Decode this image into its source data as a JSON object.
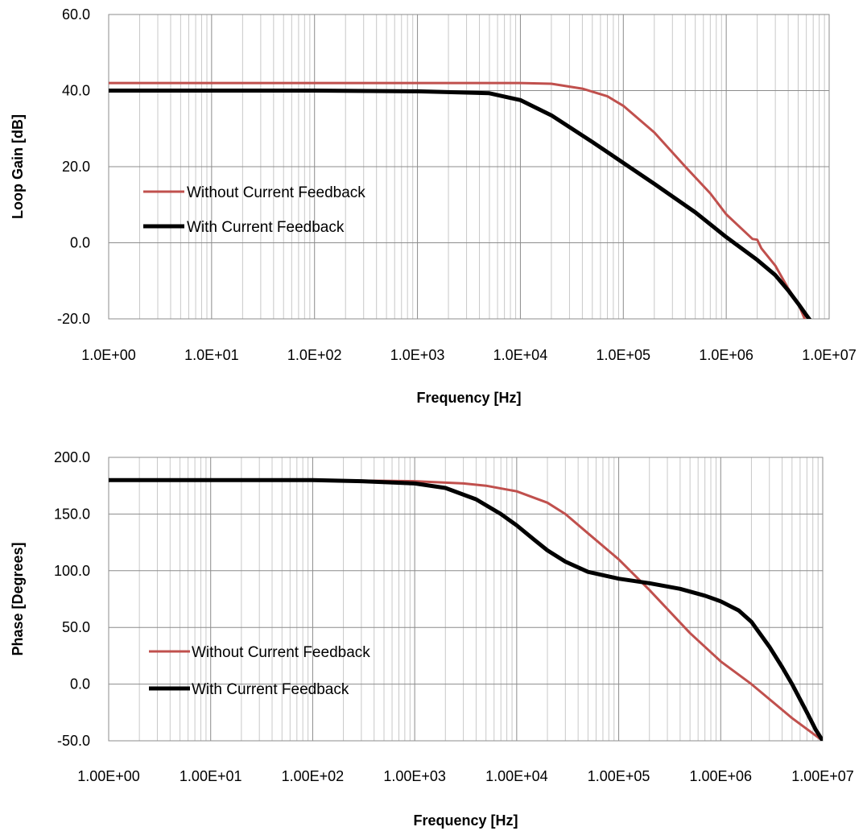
{
  "chart_data": [
    {
      "type": "line",
      "xlabel": "Frequency [Hz]",
      "ylabel": "Loop  Gain [dB]",
      "x_scale": "log",
      "xlim": [
        1,
        10000000
      ],
      "ylim": [
        -20,
        60
      ],
      "x_tick_values": [
        1,
        10,
        100,
        1000,
        10000,
        100000,
        1000000,
        10000000
      ],
      "x_tick_labels": [
        "1.0E+00",
        "1.0E+01",
        "1.0E+02",
        "1.0E+03",
        "1.0E+04",
        "1.0E+05",
        "1.0E+06",
        "1.0E+07"
      ],
      "y_tick_values": [
        -20,
        0,
        20,
        40,
        60
      ],
      "y_tick_labels": [
        "-20.0",
        "0.0",
        "20.0",
        "40.0",
        "60.0"
      ],
      "grid": "major and minor vertical, major horizontal",
      "legend": "middle-left",
      "series": [
        {
          "name": "Without Current Feedback",
          "color": "#c0504d",
          "points": [
            [
              1,
              42
            ],
            [
              1000,
              42
            ],
            [
              10000,
              42
            ],
            [
              20000,
              41.8
            ],
            [
              40000,
              40.5
            ],
            [
              70000,
              38.5
            ],
            [
              100000,
              36
            ],
            [
              200000,
              29
            ],
            [
              400000,
              20
            ],
            [
              700000,
              13
            ],
            [
              1000000,
              7.5
            ],
            [
              1500000,
              3
            ],
            [
              1800000,
              1
            ],
            [
              2000000,
              0.8
            ],
            [
              2200000,
              -1.5
            ],
            [
              3000000,
              -6
            ],
            [
              4000000,
              -12
            ],
            [
              5000000,
              -16
            ],
            [
              6000000,
              -21
            ]
          ]
        },
        {
          "name": "With Current Feedback",
          "color": "#000000",
          "points": [
            [
              1,
              40
            ],
            [
              100,
              40
            ],
            [
              1000,
              39.8
            ],
            [
              5000,
              39.3
            ],
            [
              10000,
              37.5
            ],
            [
              20000,
              33.5
            ],
            [
              50000,
              26.5
            ],
            [
              100000,
              21
            ],
            [
              200000,
              15.5
            ],
            [
              500000,
              8
            ],
            [
              1000000,
              1.5
            ],
            [
              2000000,
              -4.5
            ],
            [
              3000000,
              -8.5
            ],
            [
              4000000,
              -12.5
            ],
            [
              5000000,
              -16
            ],
            [
              6000000,
              -19
            ],
            [
              6800000,
              -21
            ]
          ]
        }
      ]
    },
    {
      "type": "line",
      "xlabel": "Frequency [Hz]",
      "ylabel": "Phase [Degrees]",
      "x_scale": "log",
      "xlim": [
        1,
        10000000
      ],
      "ylim": [
        -50,
        200
      ],
      "x_tick_values": [
        1,
        10,
        100,
        1000,
        10000,
        100000,
        1000000,
        10000000
      ],
      "x_tick_labels": [
        "1.00E+00",
        "1.00E+01",
        "1.00E+02",
        "1.00E+03",
        "1.00E+04",
        "1.00E+05",
        "1.00E+06",
        "1.00E+07"
      ],
      "y_tick_values": [
        -50,
        0,
        50,
        100,
        150,
        200
      ],
      "y_tick_labels": [
        "-50.0",
        "0.0",
        "50.0",
        "100.0",
        "150.0",
        "200.0"
      ],
      "grid": "major and minor vertical, major horizontal",
      "legend": "lower-left",
      "series": [
        {
          "name": "Without Current Feedback",
          "color": "#c0504d",
          "points": [
            [
              1,
              180
            ],
            [
              100,
              180
            ],
            [
              1000,
              179
            ],
            [
              3000,
              177
            ],
            [
              5000,
              175
            ],
            [
              10000,
              170
            ],
            [
              20000,
              160
            ],
            [
              30000,
              150
            ],
            [
              50000,
              133
            ],
            [
              100000,
              110
            ],
            [
              200000,
              83
            ],
            [
              500000,
              45
            ],
            [
              1000000,
              20
            ],
            [
              2000000,
              0
            ],
            [
              5000000,
              -30
            ],
            [
              10000000,
              -50
            ]
          ]
        },
        {
          "name": "With Current Feedback",
          "color": "#000000",
          "points": [
            [
              1,
              180
            ],
            [
              100,
              180
            ],
            [
              300,
              179
            ],
            [
              1000,
              177
            ],
            [
              2000,
              173
            ],
            [
              4000,
              163
            ],
            [
              7000,
              150
            ],
            [
              10000,
              140
            ],
            [
              15000,
              127
            ],
            [
              20000,
              118
            ],
            [
              30000,
              108
            ],
            [
              50000,
              99
            ],
            [
              100000,
              93
            ],
            [
              200000,
              89
            ],
            [
              400000,
              84
            ],
            [
              700000,
              78
            ],
            [
              1000000,
              73
            ],
            [
              1500000,
              65
            ],
            [
              2000000,
              55
            ],
            [
              3000000,
              33
            ],
            [
              4000000,
              15
            ],
            [
              5000000,
              0
            ],
            [
              7000000,
              -25
            ],
            [
              8500000,
              -40
            ],
            [
              10000000,
              -50
            ]
          ]
        }
      ]
    }
  ]
}
